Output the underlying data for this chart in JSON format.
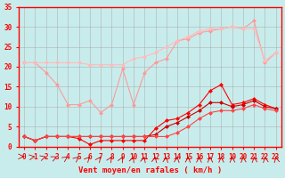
{
  "x": [
    0,
    1,
    2,
    3,
    4,
    5,
    6,
    7,
    8,
    9,
    10,
    11,
    12,
    13,
    14,
    15,
    16,
    17,
    18,
    19,
    20,
    21,
    22,
    23
  ],
  "line1": [
    21,
    21,
    18.5,
    15.5,
    10.5,
    10.5,
    11.5,
    8.5,
    10.5,
    19.5,
    10.5,
    18.5,
    21,
    22,
    26.5,
    27,
    28.5,
    29,
    29.5,
    30,
    29.5,
    31.5,
    21,
    23.5
  ],
  "line2": [
    21,
    21,
    21,
    21,
    21,
    21,
    20.5,
    20.5,
    20.5,
    20.5,
    22,
    22.5,
    23.5,
    25,
    26.5,
    27.5,
    29,
    29.5,
    29.5,
    30,
    29.5,
    29.5,
    21.5,
    23.5
  ],
  "line3": [
    2.5,
    1.5,
    2.5,
    2.5,
    2.5,
    2,
    0.5,
    1.5,
    1.5,
    1.5,
    1.5,
    1.5,
    4.5,
    6.5,
    7,
    8.5,
    10.5,
    14,
    15.5,
    10.5,
    11,
    12,
    10.5,
    9.5
  ],
  "line4": [
    2.5,
    1.5,
    2.5,
    2.5,
    2.5,
    2.5,
    2.5,
    2.5,
    2.5,
    2.5,
    2.5,
    2.5,
    3,
    5,
    6,
    7.5,
    9,
    11,
    11,
    10,
    10.5,
    11.5,
    10,
    9.5
  ],
  "line5": [
    2.5,
    1.5,
    2.5,
    2.5,
    2.5,
    2.5,
    2.5,
    2.5,
    2.5,
    2.5,
    2.5,
    2.5,
    2.5,
    2.5,
    3.5,
    5,
    7,
    8.5,
    9,
    9,
    9.5,
    10.5,
    9.5,
    9.0
  ],
  "arrows": [
    0,
    1,
    2,
    3,
    4,
    5,
    6,
    7,
    8,
    9,
    10,
    11,
    12,
    13,
    14,
    15,
    16,
    17,
    18,
    19,
    20,
    21,
    22,
    23
  ],
  "bg_color": "#c8ecec",
  "grid_color": "#aaaaaa",
  "line1_color": "#ff9999",
  "line2_color": "#ffbbbb",
  "line3_color": "#ff0000",
  "line4_color": "#cc0000",
  "line5_color": "#ff4444",
  "arrow_color": "#cc0000",
  "xlabel": "Vent moyen/en rafales ( km/h )",
  "ylabel": "",
  "xlim": [
    0,
    23
  ],
  "ylim": [
    0,
    35
  ],
  "yticks": [
    0,
    5,
    10,
    15,
    20,
    25,
    30,
    35
  ],
  "xticks": [
    0,
    1,
    2,
    3,
    4,
    5,
    6,
    7,
    8,
    9,
    10,
    11,
    12,
    13,
    14,
    15,
    16,
    17,
    18,
    19,
    20,
    21,
    22,
    23
  ],
  "tick_fontsize": 5.5,
  "label_fontsize": 6.5
}
